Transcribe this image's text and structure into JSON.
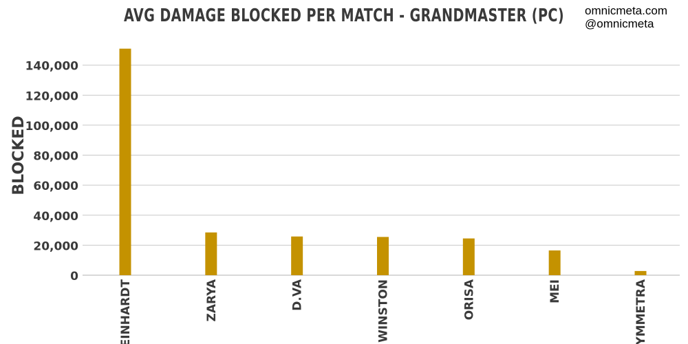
{
  "credits": {
    "site": "omnicmeta.com",
    "handle": "@omnicmeta"
  },
  "colors": {
    "bar": "#c49200",
    "grid": "#c8c8c8",
    "text": "#3a3a3a"
  },
  "chart_data": {
    "type": "bar",
    "title": "AVG DAMAGE BLOCKED PER MATCH - GRANDMASTER (PC)",
    "xlabel": "",
    "ylabel": "BLOCKED",
    "categories": [
      "REINHARDT",
      "ZARYA",
      "D.VA",
      "WINSTON",
      "ORISA",
      "MEI",
      "SYMMETRA"
    ],
    "values": [
      151000,
      28500,
      25800,
      25500,
      24500,
      16500,
      2800
    ],
    "ylim": [
      0,
      155000
    ],
    "yticks": [
      0,
      20000,
      40000,
      60000,
      80000,
      100000,
      120000,
      140000
    ],
    "ytick_labels": [
      "0",
      "20,000",
      "40,000",
      "60,000",
      "80,000",
      "100,000",
      "120,000",
      "140,000"
    ],
    "grid": true,
    "legend": "none"
  }
}
